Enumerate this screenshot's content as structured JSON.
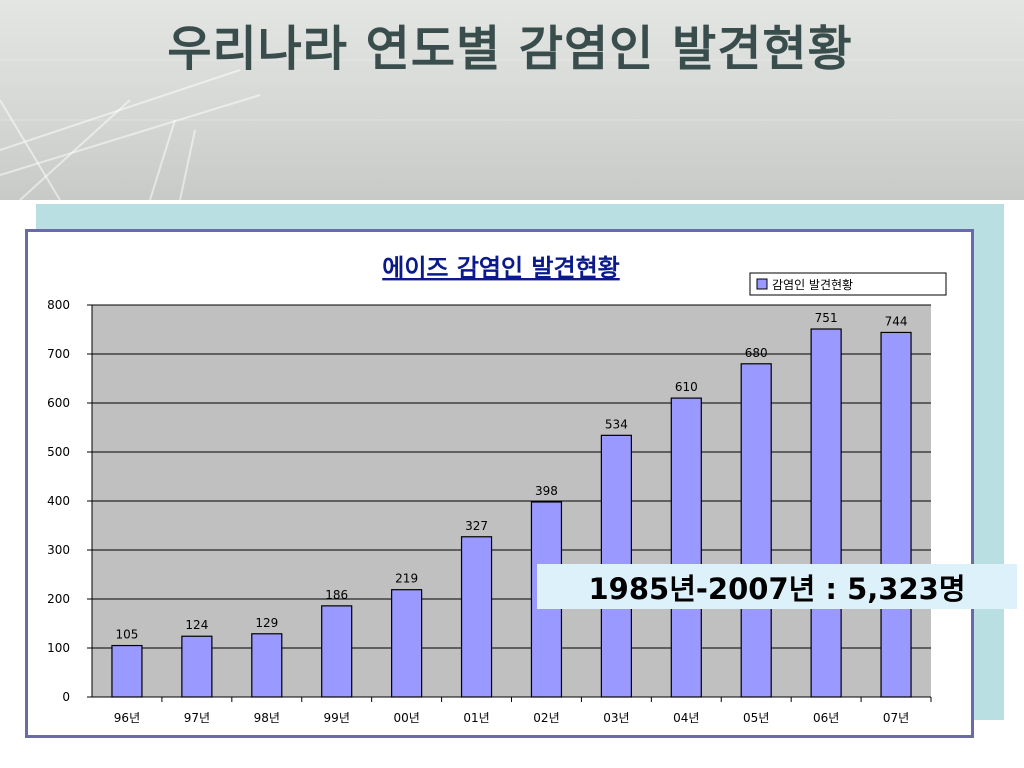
{
  "slide": {
    "title": "우리나라 연도별 감염인 발견현황"
  },
  "callout": {
    "text": "1985년-2007년 : 5,323명"
  },
  "colors": {
    "bar_fill": "#9999ff",
    "plot_bg": "#c0c0c0",
    "title_color": "#3a4d4d",
    "panel": "#b9dfe2",
    "callout_bg": "#ddf1fb"
  },
  "chart_data": {
    "type": "bar",
    "title": "에이즈 감염인 발견현황",
    "legend": "감염인 발견현황",
    "legend_position": "top-right",
    "categories": [
      "96년",
      "97년",
      "98년",
      "99년",
      "00년",
      "01년",
      "02년",
      "03년",
      "04년",
      "05년",
      "06년",
      "07년"
    ],
    "series": [
      {
        "name": "감염인 발견현황",
        "values": [
          105,
          124,
          129,
          186,
          219,
          327,
          398,
          534,
          610,
          680,
          751,
          744
        ]
      }
    ],
    "ylim": [
      0,
      800
    ],
    "yticks": [
      0,
      100,
      200,
      300,
      400,
      500,
      600,
      700,
      800
    ],
    "grid": true,
    "data_labels": true
  }
}
